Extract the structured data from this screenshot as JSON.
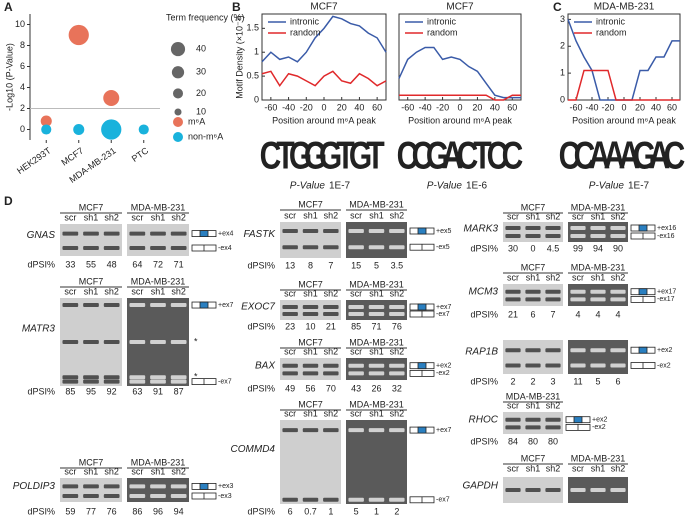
{
  "panel_letters": [
    "A",
    "B",
    "C",
    "D"
  ],
  "chart_data": [
    {
      "type": "bubble",
      "ylabel": "-Log10 (P-Value)",
      "categories": [
        "HEK293T",
        "MCF7",
        "MDA-MB-231",
        "PTC"
      ],
      "ylim": [
        -1,
        11
      ],
      "yticks": [
        0,
        2,
        4,
        6,
        8,
        10
      ],
      "threshold": 2,
      "series": [
        {
          "name": "m⁶A",
          "color": "#e8735a",
          "values": [
            0.8,
            9,
            3,
            null
          ],
          "sizes": [
            12,
            40,
            25,
            null
          ]
        },
        {
          "name": "non-m⁶A",
          "color": "#19b2dc",
          "values": [
            0,
            0,
            0,
            0
          ],
          "sizes": [
            10,
            12,
            40,
            10
          ]
        }
      ],
      "size_legend": {
        "title": "Term frequency (%)",
        "values": [
          40,
          30,
          20,
          10
        ]
      }
    },
    {
      "type": "line",
      "title": "MCF7",
      "xlabel": "Position around m⁶A peak",
      "ylabel": "Motif Density (×10⁻³)",
      "x": [
        -70,
        -60,
        -50,
        -40,
        -30,
        -20,
        -10,
        0,
        10,
        20,
        30,
        40,
        50,
        60,
        70
      ],
      "xlim": [
        -70,
        70
      ],
      "xticks": [
        -60,
        -40,
        -20,
        0,
        20,
        40,
        60
      ],
      "ylim": [
        0,
        1.8
      ],
      "yticks": [
        0,
        0.5,
        1,
        1.5
      ],
      "series": [
        {
          "name": "intronic",
          "color": "#3a5ba8",
          "values": [
            0.8,
            1.0,
            0.85,
            0.9,
            0.8,
            1.0,
            1.3,
            1.5,
            1.75,
            1.7,
            1.6,
            1.55,
            1.4,
            1.3,
            1.0
          ]
        },
        {
          "name": "random",
          "color": "#e0292b",
          "values": [
            0.55,
            0.6,
            0.3,
            0.55,
            0.5,
            0.4,
            0.3,
            0.5,
            0.6,
            0.4,
            0.35,
            0.55,
            0.45,
            0.3,
            0.4
          ]
        }
      ]
    },
    {
      "type": "line",
      "title": "MCF7",
      "xlabel": "Position around m⁶A peak",
      "x": [
        -70,
        -60,
        -50,
        -40,
        -30,
        -20,
        -10,
        0,
        10,
        20,
        30,
        40,
        50,
        60,
        70
      ],
      "xlim": [
        -70,
        70
      ],
      "xticks": [
        -60,
        -40,
        -20,
        0,
        20,
        40,
        60
      ],
      "ylim": [
        0,
        1.8
      ],
      "series": [
        {
          "name": "intronic",
          "color": "#3a5ba8",
          "values": [
            0.45,
            0.85,
            1.0,
            1.1,
            1.1,
            0.85,
            0.9,
            0.85,
            0.7,
            0.6,
            0.35,
            0.1,
            0.05,
            0.05,
            0.05
          ]
        },
        {
          "name": "random",
          "color": "#e0292b",
          "values": [
            0.1,
            0.1,
            0.1,
            0.1,
            0.1,
            0.1,
            0.1,
            0.1,
            0.1,
            0.1,
            0.1,
            0,
            0,
            0.1,
            0.1
          ]
        }
      ]
    },
    {
      "type": "line",
      "title": "MDA-MB-231",
      "xlabel": "Position around m⁶A peak",
      "x": [
        -70,
        -60,
        -50,
        -40,
        -30,
        -20,
        -10,
        0,
        10,
        20,
        30,
        40,
        50,
        60,
        70
      ],
      "xlim": [
        -70,
        70
      ],
      "xticks": [
        -60,
        -40,
        -20,
        0,
        20,
        40,
        60
      ],
      "ylim": [
        0,
        3.2
      ],
      "yticks": [
        0,
        1,
        2,
        3
      ],
      "series": [
        {
          "name": "intronic",
          "color": "#3a5ba8",
          "values": [
            3,
            2.2,
            1.6,
            1.1,
            0,
            0,
            0,
            0,
            0,
            1.1,
            1.1,
            1.6,
            1.6,
            2.2,
            2.2
          ]
        },
        {
          "name": "random",
          "color": "#e0292b",
          "values": [
            0,
            0,
            1.1,
            1.1,
            1.1,
            1.1,
            0,
            0,
            0,
            0,
            0,
            0,
            0,
            0,
            0
          ]
        }
      ]
    }
  ],
  "motifs": [
    {
      "letters": [
        "C",
        "T",
        "G",
        "G",
        "G",
        "T",
        "G",
        "T"
      ],
      "p_label": "P-Value",
      "p_value": "1E-7"
    },
    {
      "letters": [
        "C",
        "C",
        "G",
        "A",
        "C",
        "T",
        "C",
        "C"
      ],
      "p_label": "P-Value",
      "p_value": "1E-6"
    },
    {
      "letters": [
        "C",
        "C",
        "A",
        "A",
        "A",
        "G",
        "A",
        "C"
      ],
      "p_label": "P-Value",
      "p_value": "1E-7"
    }
  ],
  "gels": [
    {
      "gene": "GNAS",
      "dpsi_label": "dPSI%",
      "isoforms": [
        "+ex4",
        "-ex4"
      ],
      "lines": [
        {
          "name": "MCF7",
          "lanes": [
            "scr",
            "sh1",
            "sh2"
          ],
          "dpsi": [
            33,
            55,
            48
          ]
        },
        {
          "name": "MDA-MB-231",
          "lanes": [
            "scr",
            "sh1",
            "sh2"
          ],
          "dpsi": [
            64,
            72,
            71
          ]
        }
      ]
    },
    {
      "gene": "MATR3",
      "dpsi_label": "dPSI%",
      "isoforms": [
        "+ex7",
        "-ex7"
      ],
      "marks": [
        "*",
        "*"
      ],
      "lines": [
        {
          "name": "MCF7",
          "lanes": [
            "scr",
            "sh1",
            "sh2"
          ],
          "dpsi": [
            85,
            95,
            92
          ]
        },
        {
          "name": "MDA-MB-231",
          "lanes": [
            "scr",
            "sh1",
            "sh2"
          ],
          "dpsi": [
            63,
            91,
            87
          ]
        }
      ]
    },
    {
      "gene": "POLDIP3",
      "dpsi_label": "dPSI%",
      "isoforms": [
        "+ex3",
        "-ex3"
      ],
      "lines": [
        {
          "name": "MCF7",
          "lanes": [
            "scr",
            "sh1",
            "sh2"
          ],
          "dpsi": [
            59,
            77,
            76
          ]
        },
        {
          "name": "MDA-MB-231",
          "lanes": [
            "scr",
            "sh1",
            "sh2"
          ],
          "dpsi": [
            86,
            96,
            94
          ]
        }
      ]
    },
    {
      "gene": "FASTK",
      "dpsi_label": "dPSI%",
      "isoforms": [
        "+ex5",
        "-ex5"
      ],
      "lines": [
        {
          "name": "MCF7",
          "lanes": [
            "scr",
            "sh1",
            "sh2"
          ],
          "dpsi": [
            13,
            8,
            7
          ]
        },
        {
          "name": "MDA-MB-231",
          "lanes": [
            "scr",
            "sh1",
            "sh2"
          ],
          "dpsi": [
            15,
            5,
            3.5
          ]
        }
      ]
    },
    {
      "gene": "EXOC7",
      "dpsi_label": "dPSI%",
      "isoforms": [
        "+ex7",
        "-ex7"
      ],
      "lines": [
        {
          "name": "MCF7",
          "lanes": [
            "scr",
            "sh1",
            "sh2"
          ],
          "dpsi": [
            23,
            10,
            21
          ]
        },
        {
          "name": "MDA-MB-231",
          "lanes": [
            "scr",
            "sh1",
            "sh2"
          ],
          "dpsi": [
            85,
            71,
            76
          ]
        }
      ]
    },
    {
      "gene": "BAX",
      "dpsi_label": "dPSI%",
      "isoforms": [
        "+ex2",
        "-ex2"
      ],
      "lines": [
        {
          "name": "MCF7",
          "lanes": [
            "scr",
            "sh1",
            "sh2"
          ],
          "dpsi": [
            49,
            56,
            70
          ]
        },
        {
          "name": "MDA-MB-231",
          "lanes": [
            "scr",
            "sh1",
            "sh2"
          ],
          "dpsi": [
            43,
            26,
            32
          ]
        }
      ]
    },
    {
      "gene": "COMMD4",
      "dpsi_label": "dPSI%",
      "isoforms": [
        "+ex7",
        "-ex7"
      ],
      "lines": [
        {
          "name": "MCF7",
          "lanes": [
            "scr",
            "sh1",
            "sh2"
          ],
          "dpsi": [
            6,
            0.7,
            1
          ]
        },
        {
          "name": "MDA-MB-231",
          "lanes": [
            "scr",
            "sh1",
            "sh2"
          ],
          "dpsi": [
            5,
            1,
            2
          ]
        }
      ]
    },
    {
      "gene": "MARK3",
      "dpsi_label": "dPSI%",
      "isoforms": [
        "+ex16",
        "-ex16"
      ],
      "lines": [
        {
          "name": "MCF7",
          "lanes": [
            "scr",
            "sh1",
            "sh2"
          ],
          "dpsi": [
            30,
            0,
            4.5
          ]
        },
        {
          "name": "MDA-MB-231",
          "lanes": [
            "scr",
            "sh1",
            "sh2"
          ],
          "dpsi": [
            99,
            94,
            90
          ]
        }
      ]
    },
    {
      "gene": "MCM3",
      "dpsi_label": "dPSI%",
      "isoforms": [
        "+ex17",
        "-ex17"
      ],
      "lines": [
        {
          "name": "MCF7",
          "lanes": [
            "scr",
            "sh1",
            "sh2"
          ],
          "dpsi": [
            21,
            6,
            7
          ]
        },
        {
          "name": "MDA-MB-231",
          "lanes": [
            "scr",
            "sh1",
            "sh2"
          ],
          "dpsi": [
            4,
            4,
            4
          ]
        }
      ]
    },
    {
      "gene": "RAP1B",
      "dpsi_label": "dPSI%",
      "isoforms": [
        "+ex2",
        "-ex2"
      ],
      "lines": [
        {
          "dpsi": [
            2,
            2,
            3
          ]
        },
        {
          "dpsi": [
            11,
            5,
            6
          ]
        }
      ]
    },
    {
      "gene": "RHOC",
      "dpsi_label": "dPSI%",
      "isoforms": [
        "+ex2",
        "-ex2"
      ],
      "lines": [
        {
          "name": "MDA-MB-231",
          "lanes": [
            "scr",
            "sh1",
            "sh2"
          ],
          "dpsi": [
            84,
            80,
            80
          ]
        }
      ]
    },
    {
      "gene": "GAPDH",
      "lines": [
        {
          "name": "MCF7",
          "lanes": [
            "scr",
            "sh1",
            "sh2"
          ]
        },
        {
          "name": "MDA-MB-231",
          "lanes": [
            "scr",
            "sh1",
            "sh2"
          ]
        }
      ]
    }
  ]
}
